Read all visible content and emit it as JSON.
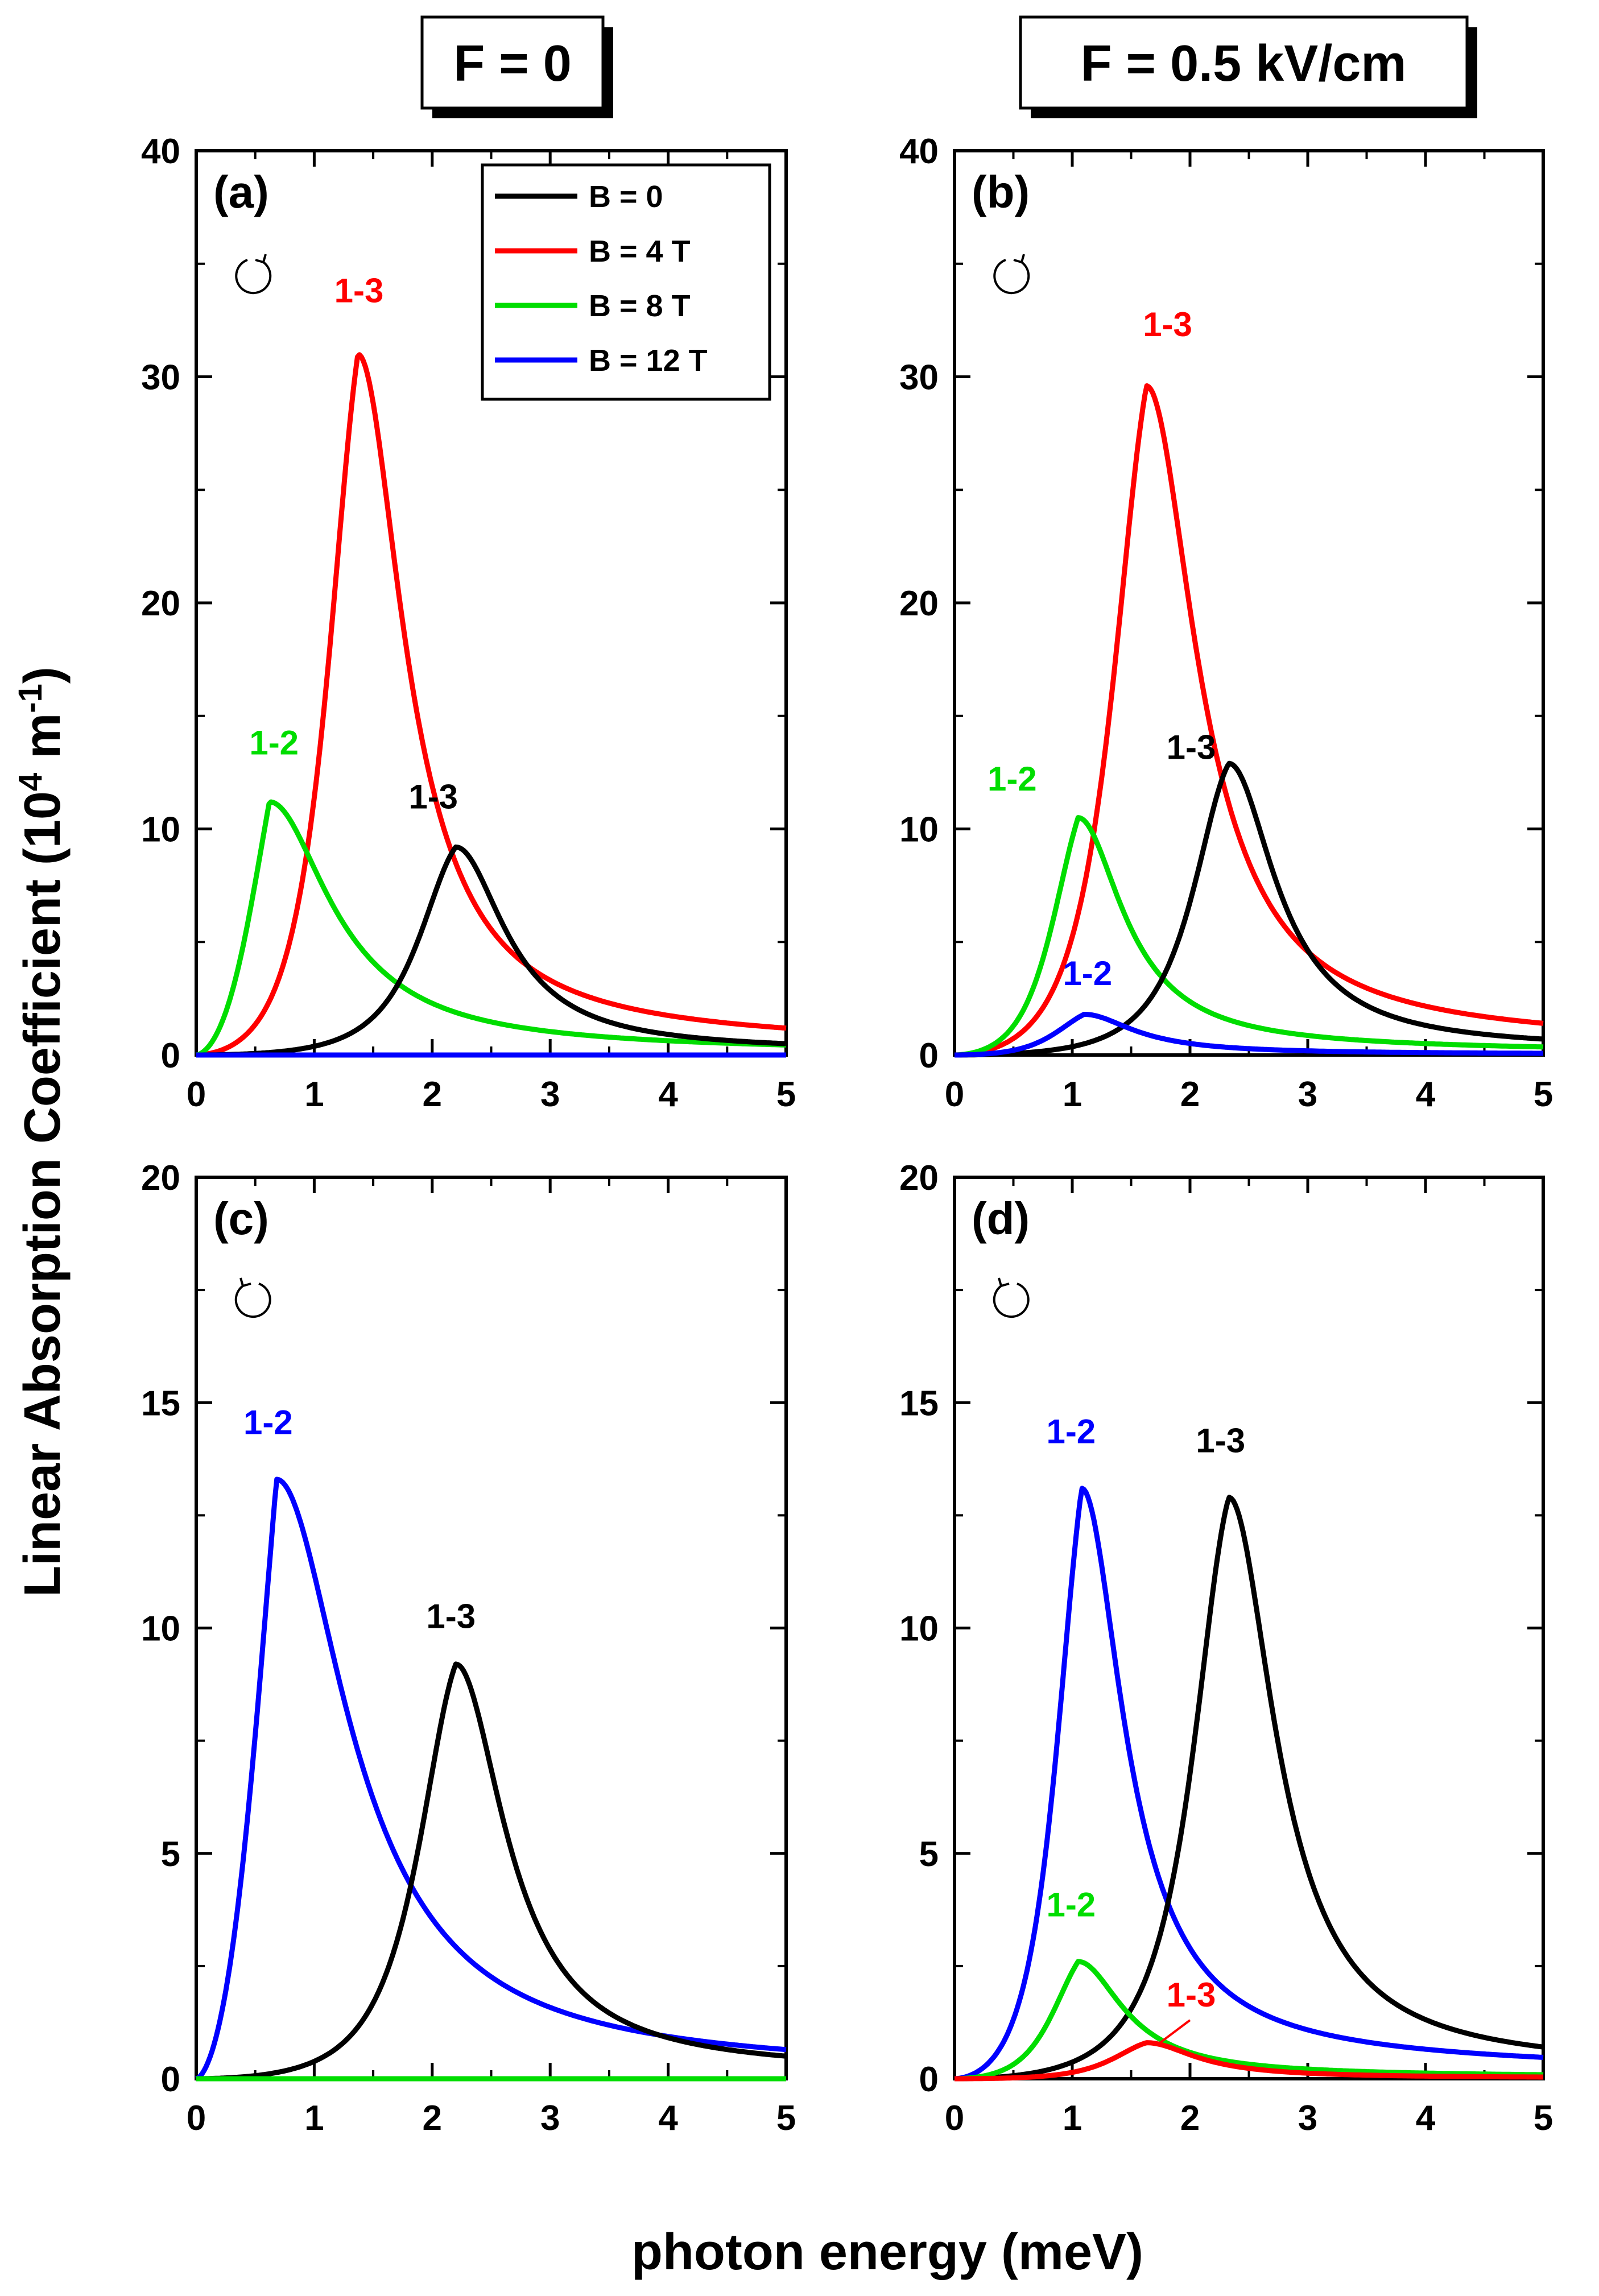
{
  "headers": [
    "F = 0",
    "F = 0.5 kV/cm"
  ],
  "xlabel": "photon energy (meV)",
  "ylabel_main": "Linear Absorption Coefficient (10",
  "ylabel_sup1": "4",
  "ylabel_mid": " m",
  "ylabel_sup2": "-1",
  "ylabel_end": ")",
  "colors": {
    "black": "#000000",
    "red": "#ff0000",
    "green": "#00dd00",
    "blue": "#0000ff"
  },
  "legend": [
    {
      "label": "B = 0",
      "color": "#000000"
    },
    {
      "label": "B = 4 T",
      "color": "#ff0000"
    },
    {
      "label": "B = 8 T",
      "color": "#00dd00"
    },
    {
      "label": "B = 12 T",
      "color": "#0000ff"
    }
  ],
  "chart_data": [
    {
      "panel": "(a)",
      "type": "line",
      "polarization_icon": "clockwise-circle-arrow-icon",
      "xlim": [
        0,
        5
      ],
      "ylim": [
        0,
        40
      ],
      "xticks": [
        0,
        1,
        2,
        3,
        4,
        5
      ],
      "yticks": [
        0,
        10,
        20,
        30,
        40
      ],
      "series": [
        {
          "name": "B = 4 T",
          "color": "#ff0000",
          "peak_x": 1.37,
          "peak_y": 31.0,
          "w": 0.46,
          "tail": 0.3,
          "zero": false
        },
        {
          "name": "B = 8 T",
          "color": "#00dd00",
          "peak_x": 0.62,
          "peak_y": 11.2,
          "w": 0.6,
          "tail": 0.55,
          "zero": false
        },
        {
          "name": "B = 0",
          "color": "#000000",
          "peak_x": 2.2,
          "peak_y": 9.2,
          "w": 0.5,
          "tail": 0.22,
          "zero": false
        },
        {
          "name": "B = 12 T",
          "color": "#0000ff",
          "zero": true
        }
      ],
      "annotations": [
        {
          "text": "1-3",
          "color": "#ff0000",
          "x": 1.17,
          "y": 33.3
        },
        {
          "text": "1-2",
          "color": "#00dd00",
          "x": 0.45,
          "y": 13.3
        },
        {
          "text": "1-3",
          "color": "#000000",
          "x": 1.8,
          "y": 10.9
        }
      ]
    },
    {
      "panel": "(b)",
      "type": "line",
      "polarization_icon": "clockwise-circle-arrow-icon",
      "xlim": [
        0,
        5
      ],
      "ylim": [
        0,
        40
      ],
      "xticks": [
        0,
        1,
        2,
        3,
        4,
        5
      ],
      "yticks": [
        0,
        10,
        20,
        30,
        40
      ],
      "series": [
        {
          "name": "B = 4 T",
          "color": "#ff0000",
          "peak_x": 1.63,
          "peak_y": 29.6,
          "w": 0.5,
          "tail": 0.3,
          "zero": false
        },
        {
          "name": "B = 8 T",
          "color": "#00dd00",
          "peak_x": 1.05,
          "peak_y": 10.5,
          "w": 0.45,
          "tail": 0.35,
          "zero": false
        },
        {
          "name": "B = 0",
          "color": "#000000",
          "peak_x": 2.33,
          "peak_y": 12.9,
          "w": 0.47,
          "tail": 0.22,
          "zero": false
        },
        {
          "name": "B = 12 T",
          "color": "#0000ff",
          "peak_x": 1.1,
          "peak_y": 1.8,
          "w": 0.5,
          "tail": 0.4,
          "zero": false
        }
      ],
      "annotations": [
        {
          "text": "1-3",
          "color": "#ff0000",
          "x": 1.6,
          "y": 31.8
        },
        {
          "text": "1-2",
          "color": "#00dd00",
          "x": 0.28,
          "y": 11.7
        },
        {
          "text": "1-3",
          "color": "#000000",
          "x": 1.8,
          "y": 13.1
        },
        {
          "text": "1-2",
          "color": "#0000ff",
          "x": 0.92,
          "y": 3.1
        }
      ]
    },
    {
      "panel": "(c)",
      "type": "line",
      "polarization_icon": "counterclockwise-circle-arrow-icon",
      "xlim": [
        0,
        5
      ],
      "ylim": [
        0,
        20
      ],
      "xticks": [
        0,
        1,
        2,
        3,
        4,
        5
      ],
      "yticks": [
        0,
        5,
        10,
        15,
        20
      ],
      "series": [
        {
          "name": "B = 12 T",
          "color": "#0000ff",
          "peak_x": 0.68,
          "peak_y": 13.3,
          "w": 0.7,
          "tail": 0.55,
          "zero": false
        },
        {
          "name": "B = 0",
          "color": "#000000",
          "peak_x": 2.2,
          "peak_y": 9.2,
          "w": 0.5,
          "tail": 0.22,
          "zero": false
        },
        {
          "name": "B = 8 T",
          "color": "#00dd00",
          "zero": true
        }
      ],
      "annotations": [
        {
          "text": "1-2",
          "color": "#0000ff",
          "x": 0.4,
          "y": 14.3
        },
        {
          "text": "1-3",
          "color": "#000000",
          "x": 1.95,
          "y": 10.0
        }
      ]
    },
    {
      "panel": "(d)",
      "type": "line",
      "polarization_icon": "counterclockwise-circle-arrow-icon",
      "xlim": [
        0,
        5
      ],
      "ylim": [
        0,
        20
      ],
      "xticks": [
        0,
        1,
        2,
        3,
        4,
        5
      ],
      "yticks": [
        0,
        5,
        10,
        15,
        20
      ],
      "series": [
        {
          "name": "B = 12 T",
          "color": "#0000ff",
          "peak_x": 1.08,
          "peak_y": 13.1,
          "w": 0.42,
          "tail": 0.4,
          "zero": false
        },
        {
          "name": "B = 0",
          "color": "#000000",
          "peak_x": 2.33,
          "peak_y": 12.9,
          "w": 0.47,
          "tail": 0.22,
          "zero": false
        },
        {
          "name": "B = 8 T",
          "color": "#00dd00",
          "peak_x": 1.05,
          "peak_y": 2.6,
          "w": 0.45,
          "tail": 0.35,
          "zero": false
        },
        {
          "name": "B = 4 T",
          "color": "#ff0000",
          "peak_x": 1.63,
          "peak_y": 0.8,
          "w": 0.5,
          "tail": 0.3,
          "zero": false
        }
      ],
      "annotations": [
        {
          "text": "1-2",
          "color": "#0000ff",
          "x": 0.78,
          "y": 14.1
        },
        {
          "text": "1-3",
          "color": "#000000",
          "x": 2.05,
          "y": 13.9
        },
        {
          "text": "1-2",
          "color": "#00dd00",
          "x": 0.78,
          "y": 3.6
        },
        {
          "text": "1-3",
          "color": "#ff0000",
          "x": 1.8,
          "y": 1.6
        }
      ]
    }
  ]
}
